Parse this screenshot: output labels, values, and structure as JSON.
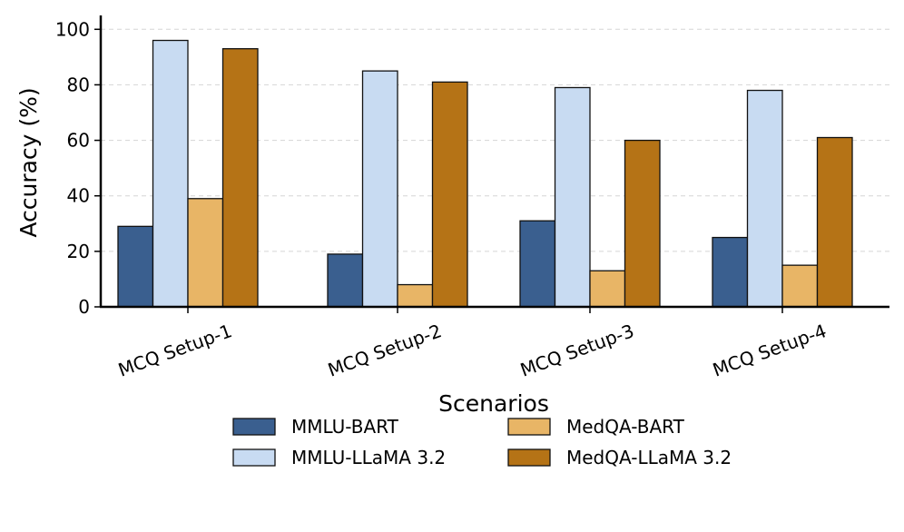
{
  "chart_data": {
    "type": "bar",
    "title": "",
    "xlabel": "Scenarios",
    "ylabel": "Accuracy (%)",
    "categories": [
      "MCQ Setup-1",
      "MCQ Setup-2",
      "MCQ Setup-3",
      "MCQ Setup-4"
    ],
    "series": [
      {
        "name": "MMLU-BART",
        "color": "#3a5f8f",
        "values": [
          29,
          19,
          31,
          25
        ]
      },
      {
        "name": "MMLU-LLaMA 3.2",
        "color": "#c8dbf2",
        "values": [
          96,
          85,
          79,
          78
        ]
      },
      {
        "name": "MedQA-BART",
        "color": "#e8b566",
        "values": [
          39,
          8,
          13,
          15
        ]
      },
      {
        "name": "MedQA-LLaMA 3.2",
        "color": "#b57316",
        "values": [
          93,
          81,
          60,
          61
        ]
      }
    ],
    "ylim": [
      0,
      105
    ],
    "yticks": [
      0,
      20,
      40,
      60,
      80,
      100
    ],
    "grid": true,
    "legend_position": "bottom-center"
  }
}
